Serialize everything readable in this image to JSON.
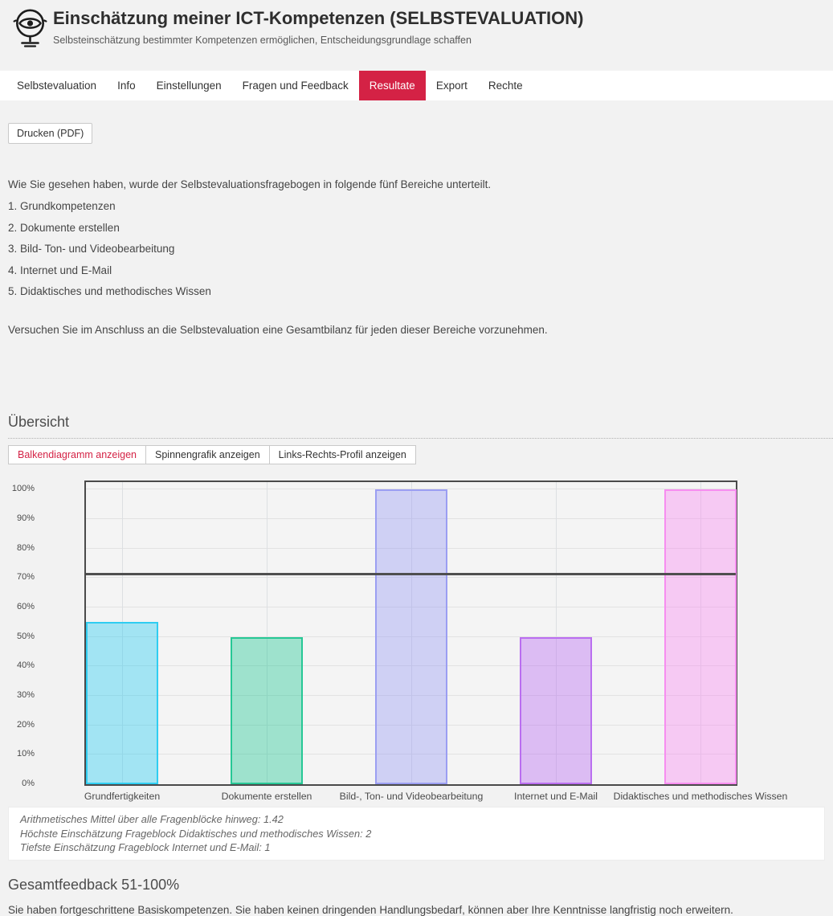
{
  "colors": {
    "accent": "#d42245",
    "chart_border": "#4a4a4a",
    "page_bg": "#f2f2f2",
    "nav_bg": "#ffffff"
  },
  "header": {
    "title": "Einschätzung meiner ICT-Kompetenzen (SELBSTEVALUATION)",
    "subtitle": "Selbsteinschätzung bestimmter Kompetenzen ermöglichen, Entscheidungsgrundlage schaffen",
    "logo_icon": "eye-mirror-icon"
  },
  "nav": {
    "items": [
      {
        "label": "Selbstevaluation",
        "active": false
      },
      {
        "label": "Info",
        "active": false
      },
      {
        "label": "Einstellungen",
        "active": false
      },
      {
        "label": "Fragen und Feedback",
        "active": false
      },
      {
        "label": "Resultate",
        "active": true
      },
      {
        "label": "Export",
        "active": false
      },
      {
        "label": "Rechte",
        "active": false
      }
    ]
  },
  "toolbar": {
    "print_button": "Drucken (PDF)"
  },
  "intro": {
    "lead": "Wie Sie gesehen haben, wurde der Selbstevaluationsfragebogen in folgende fünf Bereiche unterteilt.",
    "list": [
      "1. Grundkompetenzen",
      "2. Dokumente erstellen",
      "3. Bild- Ton- und Videobearbeitung",
      "4. Internet und E-Mail",
      "5. Didaktisches und methodisches Wissen"
    ],
    "outro": "Versuchen Sie im Anschluss an die Selbstevaluation eine Gesamtbilanz für jeden dieser Bereiche vorzunehmen."
  },
  "overview": {
    "heading": "Übersicht",
    "view_buttons": [
      {
        "label": "Balkendiagramm anzeigen",
        "active": true
      },
      {
        "label": "Spinnengrafik anzeigen",
        "active": false
      },
      {
        "label": "Links-Rechts-Profil anzeigen",
        "active": false
      }
    ]
  },
  "chart_data": {
    "type": "bar",
    "categories": [
      "Grundfertigkeiten",
      "Dokumente erstellen",
      "Bild-, Ton- und Videobearbeitung",
      "Internet und E-Mail",
      "Didaktisches und methodisches Wissen"
    ],
    "values": [
      55,
      50,
      100,
      50,
      100
    ],
    "unit": "%",
    "ylim": [
      0,
      100
    ],
    "ytick_step": 10,
    "ytick_labels": [
      "0%",
      "10%",
      "20%",
      "30%",
      "40%",
      "50%",
      "60%",
      "70%",
      "80%",
      "90%",
      "100%"
    ],
    "mean_line_value": 71,
    "grid": true,
    "legend": "none",
    "bar_colors": [
      {
        "border": "#2fcdf1",
        "fill": "rgba(47,205,241,0.42)"
      },
      {
        "border": "#26c795",
        "fill": "rgba(38,199,149,0.42)"
      },
      {
        "border": "#9b9ef2",
        "fill": "rgba(155,158,242,0.42)"
      },
      {
        "border": "#ba6ef0",
        "fill": "rgba(186,110,240,0.42)"
      },
      {
        "border": "#f78df0",
        "fill": "rgba(247,141,240,0.42)"
      }
    ]
  },
  "stats": {
    "lines": [
      "Arithmetisches Mittel über alle Fragenblöcke hinweg: 1.42",
      "Höchste Einschätzung Frageblock Didaktisches und methodisches Wissen: 2",
      "Tiefste Einschätzung Frageblock Internet und E-Mail: 1"
    ]
  },
  "feedback": {
    "heading": "Gesamtfeedback 51-100%",
    "text": "Sie haben fortgeschrittene Basiskompetenzen. Sie haben keinen dringenden Handlungsbedarf, können aber Ihre Kenntnisse langfristig noch erweitern."
  }
}
